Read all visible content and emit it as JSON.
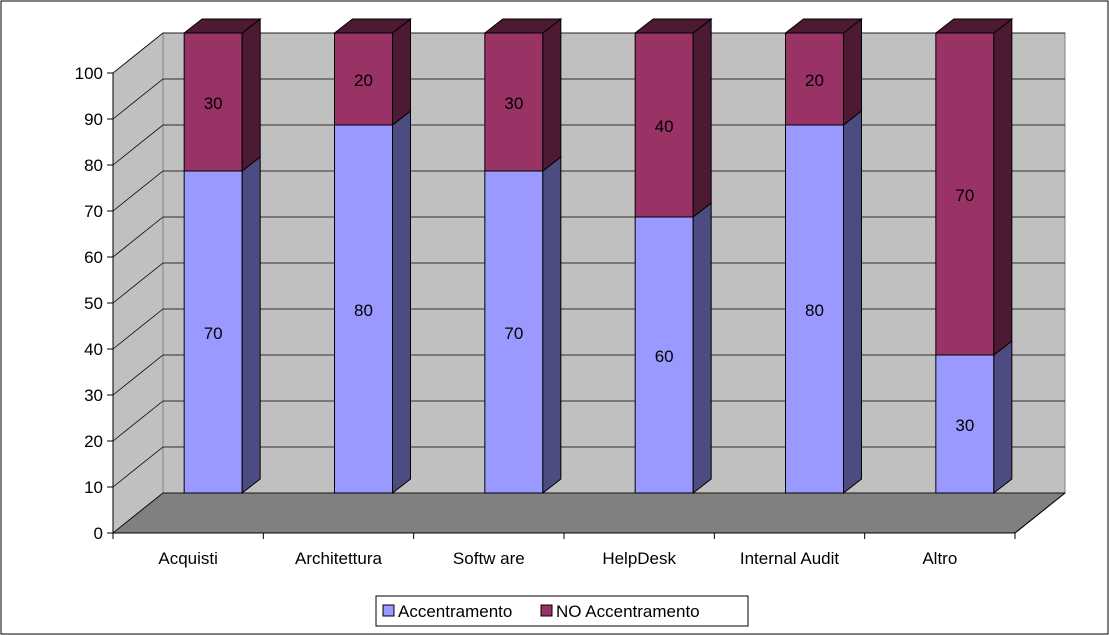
{
  "chart_data": {
    "type": "bar",
    "stacked": true,
    "three_d": true,
    "categories": [
      "Acquisti",
      "Architettura",
      "Softw are",
      "HelpDesk",
      "Internal Audit",
      "Altro"
    ],
    "series": [
      {
        "name": "Accentramento",
        "values": [
          70,
          80,
          70,
          60,
          80,
          30
        ],
        "color": "#9999FF",
        "side_color": "#4C4C80",
        "top_color": "#7A7ACC"
      },
      {
        "name": "NO Accentramento",
        "values": [
          30,
          20,
          30,
          40,
          20,
          70
        ],
        "color": "#993366",
        "side_color": "#4D1A33",
        "top_color": "#7A2952"
      }
    ],
    "ylim": [
      0,
      100
    ],
    "yticks": [
      0,
      10,
      20,
      30,
      40,
      50,
      60,
      70,
      80,
      90,
      100
    ],
    "grid": true,
    "data_labels": true,
    "legend": {
      "position": "bottom"
    },
    "colors": {
      "wall": "#C0C0C0",
      "floor": "#808080",
      "grid": "#000000",
      "text": "#000000"
    }
  }
}
